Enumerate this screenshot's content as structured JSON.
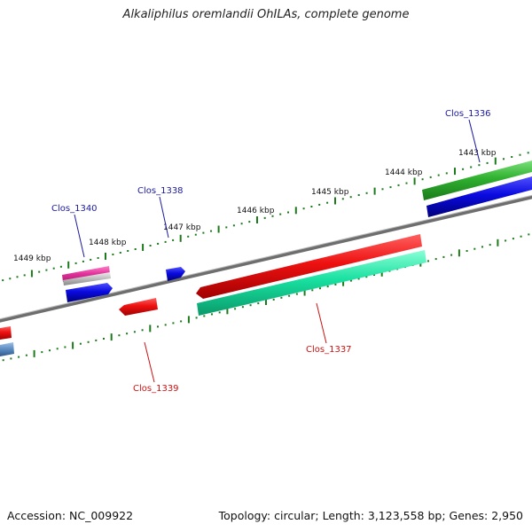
{
  "title": "Alkaliphilus oremlandii OhILAs, complete genome",
  "footer": {
    "accession": "Accession: NC_009922",
    "summary": "Topology: circular; Length: 3,123,558 bp; Genes: 2,950"
  },
  "scale_labels": [
    "1443 kbp",
    "1444 kbp",
    "1445 kbp",
    "1446 kbp",
    "1447 kbp",
    "1448 kbp",
    "1449 kbp"
  ],
  "genes": [
    {
      "name": "Clos_1336",
      "strand": "forward",
      "color": "#1a1aa0"
    },
    {
      "name": "Clos_1337",
      "strand": "reverse",
      "color": "#cc1111"
    },
    {
      "name": "Clos_1338",
      "strand": "forward",
      "color": "#1a1aa0"
    },
    {
      "name": "Clos_1339",
      "strand": "reverse",
      "color": "#cc1111"
    },
    {
      "name": "Clos_1340",
      "strand": "forward",
      "color": "#1a1aa0"
    }
  ],
  "colors": {
    "backbone": "#7a7a7a",
    "tick": "#1d7a1d",
    "cds_forward": "#0a0ae0",
    "cds_reverse": "#e01010",
    "green_track": "#2fb02f",
    "cyan_track": "#18e0a0",
    "pink_track": "#e0309a",
    "steel_track": "#5a8ac0"
  }
}
